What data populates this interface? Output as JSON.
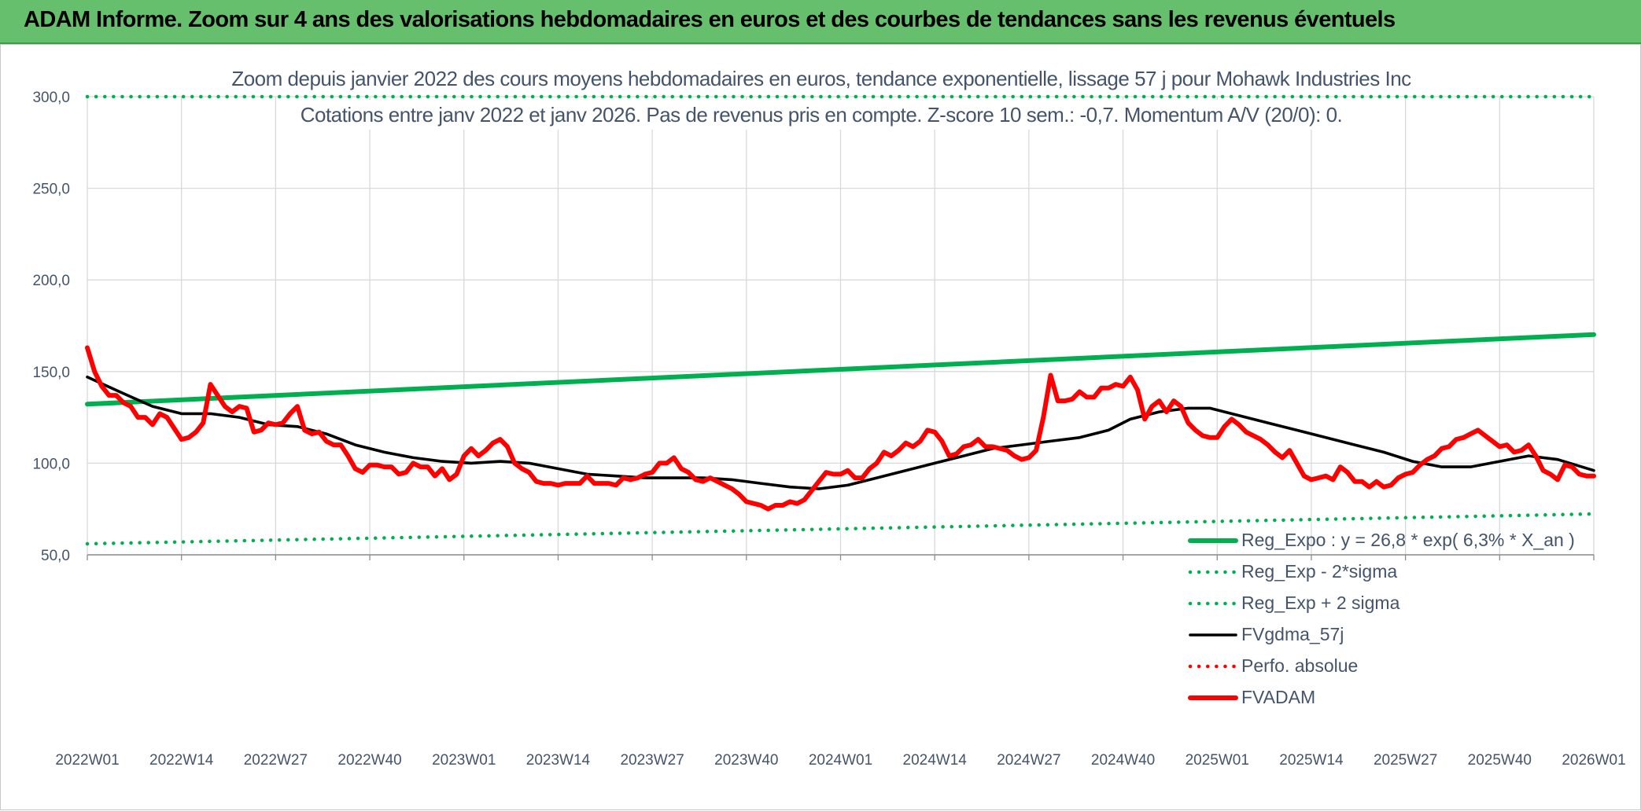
{
  "header": {
    "title": "ADAM Informe. Zoom sur 4 ans des valorisations hebdomadaires en euros et des courbes de tendances sans les revenus éventuels"
  },
  "colors": {
    "banner": "#66bf6c",
    "trend": "#00b050",
    "price": "#ff0000",
    "moving_average": "#000000",
    "perf": "#ff0000",
    "grid": "#d9d9d9",
    "text": "#44546a"
  },
  "chart_data": {
    "type": "line",
    "title_lines": [
      "Zoom depuis janvier 2022 des cours moyens hebdomadaires en euros, tendance exponentielle, lissage 57 j pour Mohawk Industries Inc",
      "Cotations entre janv 2022 et janv 2026. Pas de revenus pris en compte. Z-score 10 sem.: -0,7. Momentum A/V (20/0): 0."
    ],
    "xlabel": "",
    "ylabel": "",
    "ylim": [
      50,
      300
    ],
    "y_ticks": [
      "50,0",
      "100,0",
      "150,0",
      "200,0",
      "250,0",
      "300,0"
    ],
    "x_ticks": [
      "2022W01",
      "2022W14",
      "2022W27",
      "2022W40",
      "2023W01",
      "2023W14",
      "2023W27",
      "2023W40",
      "2024W01",
      "2024W14",
      "2024W27",
      "2024W40",
      "2025W01",
      "2025W14",
      "2025W27",
      "2025W40",
      "2026W01"
    ],
    "grid": true,
    "legend_position": "right",
    "series": [
      {
        "name": "Reg_Expo : y = 26,8 * exp( 6,3% *  X_an )",
        "style": "solid-thick",
        "color": "#00b050",
        "points": [
          [
            0,
            132.2
          ],
          [
            208,
            170.2
          ]
        ]
      },
      {
        "name": "Reg_Exp - 2*sigma",
        "style": "dotted",
        "color": "#00b050",
        "points": [
          [
            0,
            56.0
          ],
          [
            208,
            72.3
          ]
        ]
      },
      {
        "name": "Reg_Exp + 2 sigma",
        "style": "dotted",
        "color": "#00b050",
        "points": [
          [
            0,
            300.0
          ],
          [
            208,
            300.0
          ]
        ]
      },
      {
        "name": "FVgdma_57j",
        "style": "solid",
        "color": "#000000",
        "points": [
          [
            0,
            147
          ],
          [
            5,
            138
          ],
          [
            9,
            131
          ],
          [
            13,
            127
          ],
          [
            17,
            127
          ],
          [
            21,
            125
          ],
          [
            25,
            121
          ],
          [
            29,
            120
          ],
          [
            33,
            116
          ],
          [
            37,
            110
          ],
          [
            41,
            106
          ],
          [
            45,
            103
          ],
          [
            49,
            101
          ],
          [
            53,
            100
          ],
          [
            57,
            101
          ],
          [
            61,
            100
          ],
          [
            65,
            97
          ],
          [
            69,
            94
          ],
          [
            73,
            93
          ],
          [
            77,
            92
          ],
          [
            81,
            92
          ],
          [
            85,
            92
          ],
          [
            89,
            91
          ],
          [
            93,
            89
          ],
          [
            97,
            87
          ],
          [
            101,
            86
          ],
          [
            105,
            88
          ],
          [
            109,
            92
          ],
          [
            113,
            96
          ],
          [
            117,
            100
          ],
          [
            121,
            104
          ],
          [
            125,
            108
          ],
          [
            129,
            110
          ],
          [
            133,
            112
          ],
          [
            137,
            114
          ],
          [
            141,
            118
          ],
          [
            144,
            124
          ],
          [
            148,
            128
          ],
          [
            152,
            130
          ],
          [
            155,
            130
          ],
          [
            159,
            126
          ],
          [
            163,
            122
          ],
          [
            167,
            118
          ],
          [
            171,
            114
          ],
          [
            175,
            110
          ],
          [
            179,
            106
          ],
          [
            183,
            101
          ],
          [
            187,
            98
          ],
          [
            191,
            98
          ],
          [
            195,
            101
          ],
          [
            199,
            104
          ],
          [
            203,
            102
          ],
          [
            208,
            96
          ]
        ]
      },
      {
        "name": "Perfo. absolue",
        "style": "dotted",
        "color": "#ff0000",
        "points": []
      },
      {
        "name": "FVADAM",
        "style": "solid-thick",
        "color": "#ff0000",
        "points": [
          [
            0,
            163
          ],
          [
            1,
            150
          ],
          [
            2,
            142
          ],
          [
            3,
            137
          ],
          [
            4,
            137
          ],
          [
            5,
            133
          ],
          [
            6,
            131
          ],
          [
            7,
            125
          ],
          [
            8,
            125
          ],
          [
            9,
            121
          ],
          [
            10,
            127
          ],
          [
            11,
            125
          ],
          [
            12,
            119
          ],
          [
            13,
            113
          ],
          [
            14,
            114
          ],
          [
            15,
            117
          ],
          [
            16,
            122
          ],
          [
            17,
            143
          ],
          [
            18,
            137
          ],
          [
            19,
            131
          ],
          [
            20,
            128
          ],
          [
            21,
            131
          ],
          [
            22,
            130
          ],
          [
            23,
            117
          ],
          [
            24,
            118
          ],
          [
            25,
            122
          ],
          [
            26,
            121
          ],
          [
            27,
            122
          ],
          [
            28,
            127
          ],
          [
            29,
            131
          ],
          [
            30,
            118
          ],
          [
            31,
            116
          ],
          [
            32,
            117
          ],
          [
            33,
            112
          ],
          [
            34,
            110
          ],
          [
            35,
            110
          ],
          [
            36,
            104
          ],
          [
            37,
            97
          ],
          [
            38,
            95
          ],
          [
            39,
            99
          ],
          [
            40,
            99
          ],
          [
            41,
            98
          ],
          [
            42,
            98
          ],
          [
            43,
            94
          ],
          [
            44,
            95
          ],
          [
            45,
            100
          ],
          [
            46,
            98
          ],
          [
            47,
            98
          ],
          [
            48,
            93
          ],
          [
            49,
            97
          ],
          [
            50,
            91
          ],
          [
            51,
            94
          ],
          [
            52,
            104
          ],
          [
            53,
            108
          ],
          [
            54,
            104
          ],
          [
            55,
            107
          ],
          [
            56,
            111
          ],
          [
            57,
            113
          ],
          [
            58,
            109
          ],
          [
            59,
            100
          ],
          [
            60,
            97
          ],
          [
            61,
            95
          ],
          [
            62,
            90
          ],
          [
            63,
            89
          ],
          [
            64,
            89
          ],
          [
            65,
            88
          ],
          [
            66,
            89
          ],
          [
            67,
            89
          ],
          [
            68,
            89
          ],
          [
            69,
            93
          ],
          [
            70,
            89
          ],
          [
            71,
            89
          ],
          [
            72,
            89
          ],
          [
            73,
            88
          ],
          [
            74,
            92
          ],
          [
            75,
            91
          ],
          [
            76,
            92
          ],
          [
            77,
            94
          ],
          [
            78,
            95
          ],
          [
            79,
            100
          ],
          [
            80,
            100
          ],
          [
            81,
            103
          ],
          [
            82,
            97
          ],
          [
            83,
            95
          ],
          [
            84,
            91
          ],
          [
            85,
            90
          ],
          [
            86,
            92
          ],
          [
            87,
            90
          ],
          [
            88,
            88
          ],
          [
            89,
            86
          ],
          [
            90,
            83
          ],
          [
            91,
            79
          ],
          [
            92,
            78
          ],
          [
            93,
            77
          ],
          [
            94,
            75
          ],
          [
            95,
            77
          ],
          [
            96,
            77
          ],
          [
            97,
            79
          ],
          [
            98,
            78
          ],
          [
            99,
            80
          ],
          [
            100,
            85
          ],
          [
            101,
            90
          ],
          [
            102,
            95
          ],
          [
            103,
            94
          ],
          [
            104,
            94
          ],
          [
            105,
            96
          ],
          [
            106,
            92
          ],
          [
            107,
            92
          ],
          [
            108,
            97
          ],
          [
            109,
            100
          ],
          [
            110,
            106
          ],
          [
            111,
            104
          ],
          [
            112,
            107
          ],
          [
            113,
            111
          ],
          [
            114,
            109
          ],
          [
            115,
            112
          ],
          [
            116,
            118
          ],
          [
            117,
            117
          ],
          [
            118,
            112
          ],
          [
            119,
            104
          ],
          [
            120,
            105
          ],
          [
            121,
            109
          ],
          [
            122,
            110
          ],
          [
            123,
            113
          ],
          [
            124,
            109
          ],
          [
            125,
            109
          ],
          [
            126,
            108
          ],
          [
            127,
            107
          ],
          [
            128,
            104
          ],
          [
            129,
            102
          ],
          [
            130,
            103
          ],
          [
            131,
            107
          ],
          [
            132,
            125
          ],
          [
            133,
            148
          ],
          [
            134,
            134
          ],
          [
            135,
            134
          ],
          [
            136,
            135
          ],
          [
            137,
            139
          ],
          [
            138,
            136
          ],
          [
            139,
            136
          ],
          [
            140,
            141
          ],
          [
            141,
            141
          ],
          [
            142,
            143
          ],
          [
            143,
            142
          ],
          [
            144,
            147
          ],
          [
            145,
            140
          ],
          [
            146,
            124
          ],
          [
            147,
            131
          ],
          [
            148,
            134
          ],
          [
            149,
            128
          ],
          [
            150,
            134
          ],
          [
            151,
            131
          ],
          [
            152,
            122
          ],
          [
            153,
            118
          ],
          [
            154,
            115
          ],
          [
            155,
            114
          ],
          [
            156,
            114
          ],
          [
            157,
            120
          ],
          [
            158,
            124
          ],
          [
            159,
            121
          ],
          [
            160,
            117
          ],
          [
            161,
            115
          ],
          [
            162,
            113
          ],
          [
            163,
            110
          ],
          [
            164,
            106
          ],
          [
            165,
            103
          ],
          [
            166,
            107
          ],
          [
            167,
            100
          ],
          [
            168,
            93
          ],
          [
            169,
            91
          ],
          [
            170,
            92
          ],
          [
            171,
            93
          ],
          [
            172,
            91
          ],
          [
            173,
            98
          ],
          [
            174,
            95
          ],
          [
            175,
            90
          ],
          [
            176,
            90
          ],
          [
            177,
            87
          ],
          [
            178,
            90
          ],
          [
            179,
            87
          ],
          [
            180,
            88
          ],
          [
            181,
            92
          ],
          [
            182,
            94
          ],
          [
            183,
            95
          ],
          [
            184,
            99
          ],
          [
            185,
            102
          ],
          [
            186,
            104
          ],
          [
            187,
            108
          ],
          [
            188,
            109
          ],
          [
            189,
            113
          ],
          [
            190,
            114
          ],
          [
            191,
            116
          ],
          [
            192,
            118
          ],
          [
            193,
            115
          ],
          [
            194,
            112
          ],
          [
            195,
            109
          ],
          [
            196,
            110
          ],
          [
            197,
            106
          ],
          [
            198,
            107
          ],
          [
            199,
            110
          ],
          [
            200,
            104
          ],
          [
            201,
            96
          ],
          [
            202,
            94
          ],
          [
            203,
            91
          ],
          [
            204,
            99
          ],
          [
            205,
            98
          ],
          [
            206,
            94
          ],
          [
            207,
            93
          ],
          [
            208,
            93
          ]
        ]
      }
    ]
  }
}
